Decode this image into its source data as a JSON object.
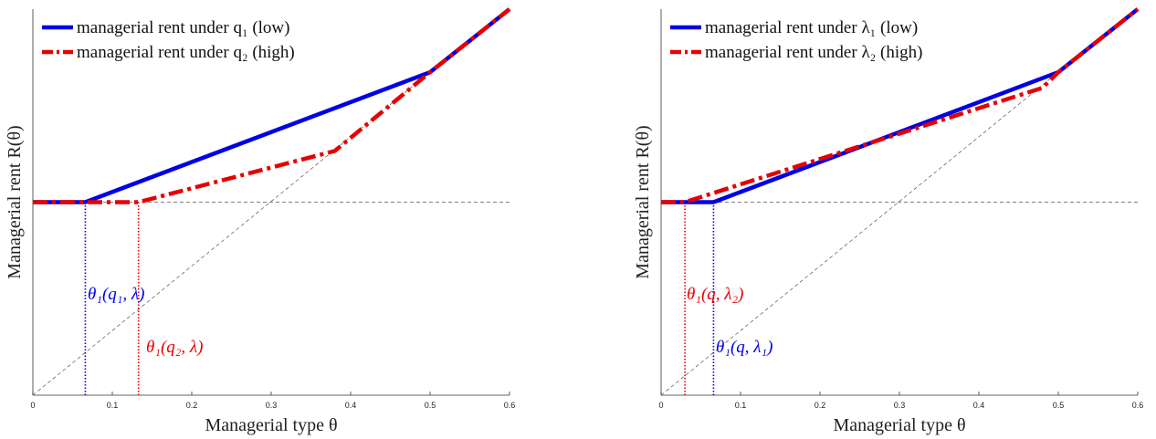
{
  "colors": {
    "low": "#0000e6",
    "high": "#e60000",
    "ref": "#555555",
    "axis": "#333333"
  },
  "chart_data": [
    {
      "type": "line",
      "xlabel": "Managerial type θ",
      "ylabel": "Managerial rent R(θ)",
      "xlim": [
        0,
        0.6
      ],
      "ylim": [
        0,
        0.49
      ],
      "xticks": [
        "0",
        "0.1",
        "0.2",
        "0.3",
        "0.4",
        "0.5",
        "0.6"
      ],
      "xtick_values": [
        0,
        0.1,
        0.2,
        0.3,
        0.4,
        0.5,
        0.6
      ],
      "grid": false,
      "legend_position": "top-left",
      "series": [
        {
          "name": "managerial rent under q₁ (low)",
          "style": "solid",
          "color": "low",
          "x": [
            0,
            0.066,
            0.5,
            0.6
          ],
          "y": [
            0.245,
            0.245,
            0.41,
            0.49
          ]
        },
        {
          "name": "managerial rent under q₂ (high)",
          "style": "dashdot",
          "color": "high",
          "x": [
            0,
            0.133,
            0.38,
            0.5,
            0.6
          ],
          "y": [
            0.245,
            0.245,
            0.31,
            0.41,
            0.49
          ]
        }
      ],
      "reference_lines": [
        {
          "kind": "horizontal",
          "y": 0.245
        },
        {
          "kind": "diagonal",
          "x": [
            0,
            0.5
          ],
          "y": [
            0,
            0.41
          ]
        }
      ],
      "markers": [
        {
          "x": 0.066,
          "y": 0.245,
          "color": "low",
          "label": "θ₁(q₁, λ)"
        },
        {
          "x": 0.133,
          "y": 0.245,
          "color": "high",
          "label": "θ₁(q₂, λ)"
        }
      ]
    },
    {
      "type": "line",
      "xlabel": "Managerial type θ",
      "ylabel": "Managerial rent R(θ)",
      "xlim": [
        0,
        0.6
      ],
      "ylim": [
        0,
        0.49
      ],
      "xticks": [
        "0",
        "0.1",
        "0.2",
        "0.3",
        "0.4",
        "0.5",
        "0.6"
      ],
      "xtick_values": [
        0,
        0.1,
        0.2,
        0.3,
        0.4,
        0.5,
        0.6
      ],
      "grid": false,
      "legend_position": "top-left",
      "series": [
        {
          "name": "managerial rent under λ₁ (low)",
          "style": "solid",
          "color": "low",
          "x": [
            0,
            0.066,
            0.5,
            0.6
          ],
          "y": [
            0.245,
            0.245,
            0.41,
            0.49
          ]
        },
        {
          "name": "managerial rent under λ₂ (high)",
          "style": "dashdot",
          "color": "high",
          "x": [
            0,
            0.03,
            0.48,
            0.5,
            0.6
          ],
          "y": [
            0.245,
            0.245,
            0.39,
            0.41,
            0.49
          ]
        }
      ],
      "reference_lines": [
        {
          "kind": "horizontal",
          "y": 0.245
        },
        {
          "kind": "diagonal",
          "x": [
            0,
            0.5
          ],
          "y": [
            0,
            0.41
          ]
        }
      ],
      "markers": [
        {
          "x": 0.03,
          "y": 0.245,
          "color": "high",
          "label": "θ₁(q, λ₂)"
        },
        {
          "x": 0.066,
          "y": 0.245,
          "color": "low",
          "label": "θ₁(q, λ₁)"
        }
      ]
    }
  ]
}
